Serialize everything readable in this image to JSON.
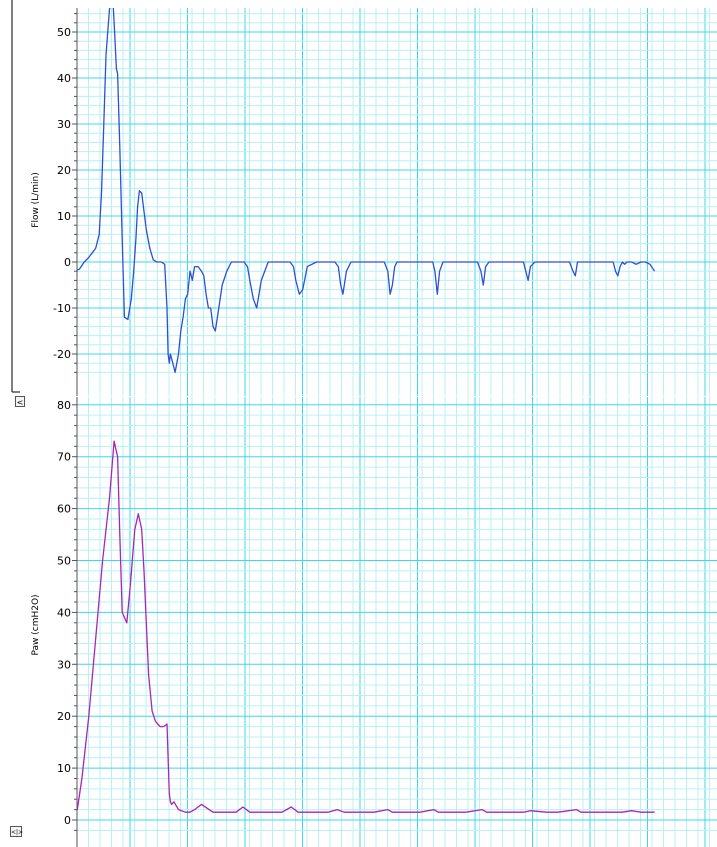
{
  "chart_data": [
    {
      "type": "line",
      "ylabel": "Flow (L/min)",
      "ylim": [
        -24,
        56
      ],
      "yticks": [
        50,
        40,
        30,
        20,
        10,
        0,
        -10,
        -20
      ],
      "grid": true,
      "series": [
        {
          "color": "#2e4fd6",
          "x": [
            0.0,
            0.2,
            0.4,
            0.6,
            0.75,
            0.9,
            1.05,
            1.15,
            1.25,
            1.35,
            1.5,
            1.65,
            1.72,
            1.8,
            1.85,
            1.95,
            2.05,
            2.15,
            2.3,
            2.45,
            2.55,
            2.65,
            2.72,
            2.8,
            2.9,
            3.0,
            3.1,
            3.25,
            3.4,
            3.55,
            3.75,
            3.9,
            4.0,
            4.05,
            4.1,
            4.15,
            4.25,
            4.35,
            4.5,
            4.6,
            4.7,
            4.8,
            4.9,
            5.0,
            5.1,
            5.2,
            5.35,
            5.5,
            5.6,
            5.7,
            5.8,
            5.9,
            6.0,
            6.1,
            6.25,
            6.4,
            6.6,
            6.8,
            7.0,
            7.2,
            7.35,
            7.5,
            7.6,
            7.75,
            7.9,
            8.1,
            8.4,
            8.7,
            9.0,
            9.2,
            9.35,
            9.5,
            9.6,
            9.75,
            9.9,
            10.1,
            10.5,
            11.0,
            11.3,
            11.45,
            11.55,
            11.65,
            11.8,
            12.0,
            12.5,
            13.0,
            13.45,
            13.6,
            13.7,
            13.8,
            13.9,
            14.0,
            14.5,
            15.0,
            15.55,
            15.65,
            15.75,
            15.85,
            16.0,
            16.5,
            17.0,
            17.5,
            17.65,
            17.75,
            17.85,
            18.0,
            18.5,
            19.0,
            19.5,
            19.6,
            19.7,
            19.8,
            20.0,
            20.5,
            21.0,
            21.5,
            21.65,
            21.75,
            21.85,
            22.0,
            22.5,
            23.0,
            23.4,
            23.5,
            23.6,
            23.7,
            23.8,
            23.9,
            24.0,
            24.2,
            24.4,
            24.6,
            24.8,
            25.0,
            25.2
          ],
          "y": [
            -2,
            -1.5,
            0,
            1,
            2,
            3,
            6,
            15,
            30,
            45,
            55,
            57,
            50,
            42,
            41,
            25,
            5,
            -12,
            -12.5,
            -8,
            -2,
            5,
            12,
            15.5,
            15,
            11,
            7,
            3,
            0.5,
            0,
            0,
            -0.5,
            -10,
            -20,
            -22,
            -20,
            -22,
            -24,
            -20,
            -15,
            -12,
            -8,
            -7,
            -2,
            -4,
            -1,
            -1,
            -2,
            -3,
            -7,
            -10,
            -10,
            -14,
            -15,
            -10,
            -5,
            -2,
            0,
            0,
            0,
            0,
            -1,
            -4,
            -8,
            -10,
            -4,
            0,
            0,
            0,
            0,
            0,
            -1,
            -4,
            -7,
            -6,
            -1,
            0,
            0,
            0,
            -1,
            -5,
            -7,
            -2,
            0,
            0,
            0,
            0,
            -2,
            -7,
            -5,
            -1,
            0,
            0,
            0,
            0,
            -2,
            -7,
            -2,
            0,
            0,
            0,
            0,
            -2,
            -5,
            -1,
            0,
            0,
            0,
            0,
            -2,
            -4,
            -1,
            0,
            0,
            0,
            0,
            -2,
            -3,
            0,
            0,
            0,
            0,
            0,
            -2,
            -3,
            -1,
            0,
            -0.5,
            0,
            0,
            -0.5,
            0,
            0,
            -0.5,
            -2
          ]
        }
      ]
    },
    {
      "type": "line",
      "ylabel": "Paw (cmH2O)",
      "ylim": [
        -2,
        80
      ],
      "yticks": [
        80,
        70,
        60,
        50,
        40,
        30,
        20,
        10,
        0
      ],
      "grid": true,
      "series": [
        {
          "color": "#a826b5",
          "x": [
            0.0,
            0.1,
            0.3,
            0.6,
            0.9,
            1.2,
            1.5,
            1.7,
            1.85,
            1.95,
            2.05,
            2.25,
            2.4,
            2.6,
            2.75,
            2.9,
            3.0,
            3.1,
            3.2,
            3.35,
            3.5,
            3.7,
            3.85,
            4.0,
            4.05,
            4.1,
            4.15,
            4.2,
            4.3,
            4.5,
            4.8,
            5.0,
            5.2,
            5.5,
            6.0,
            6.5,
            7.0,
            7.3,
            7.6,
            8.0,
            8.5,
            9.0,
            9.4,
            9.7,
            10.0,
            10.5,
            11.0,
            11.4,
            11.7,
            12.0,
            12.5,
            13.0,
            13.6,
            13.8,
            14.0,
            14.5,
            15.0,
            15.6,
            15.8,
            16.0,
            16.5,
            17.0,
            17.7,
            17.9,
            18.2,
            18.8,
            19.5,
            19.8,
            20.5,
            21.0,
            21.8,
            22.0,
            22.5,
            23.0,
            23.6,
            23.8,
            24.2,
            24.6,
            25.0,
            25.2
          ],
          "y": [
            1.5,
            2,
            8,
            20,
            35,
            50,
            62,
            73,
            70,
            55,
            40,
            38,
            45,
            56,
            59,
            56,
            48,
            38,
            28,
            21,
            19,
            18,
            18,
            18.5,
            12,
            5,
            3.5,
            3,
            3.5,
            2,
            1.5,
            1.5,
            2,
            3,
            1.5,
            1.5,
            1.5,
            2.5,
            1.5,
            1.5,
            1.5,
            1.5,
            2.5,
            1.5,
            1.5,
            1.5,
            1.5,
            2,
            1.5,
            1.5,
            1.5,
            1.5,
            2,
            1.5,
            1.5,
            1.5,
            1.5,
            2,
            1.5,
            1.5,
            1.5,
            1.5,
            2,
            1.5,
            1.5,
            1.5,
            1.5,
            1.8,
            1.5,
            1.5,
            2,
            1.5,
            1.5,
            1.5,
            1.5,
            1.5,
            1.8,
            1.5,
            1.5,
            1.5
          ]
        }
      ]
    }
  ],
  "controls": {
    "collapse_top": "<",
    "collapse_bottom": "<|>"
  }
}
